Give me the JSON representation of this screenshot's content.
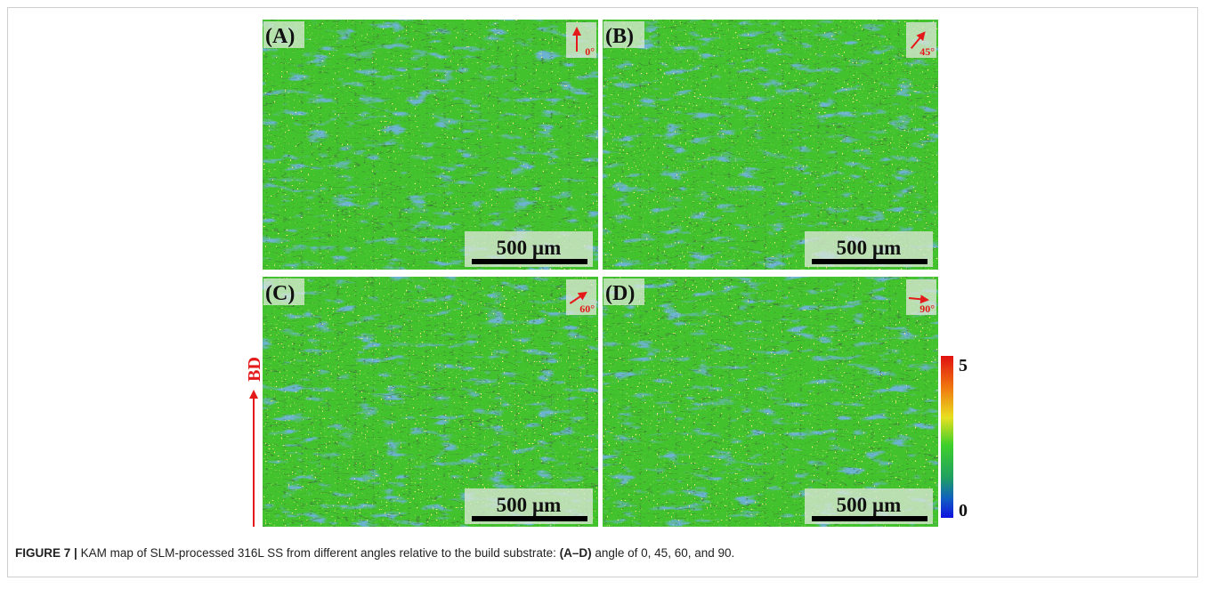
{
  "figure": {
    "panels": [
      {
        "label": "(A)",
        "angle": "0°",
        "scale_bar": "500 µm"
      },
      {
        "label": "(B)",
        "angle": "45°",
        "scale_bar": "500 µm"
      },
      {
        "label": "(C)",
        "angle": "60°",
        "scale_bar": "500 µm"
      },
      {
        "label": "(D)",
        "angle": "90°",
        "scale_bar": "500 µm"
      }
    ],
    "colorbar": {
      "max": 5,
      "min": 0
    },
    "direction_label": "BD",
    "caption": {
      "label": "FIGURE 7 |",
      "text_before": "KAM map of SLM-processed 316L SS from different angles relative to the build substrate:",
      "emphasis": "(A–D)",
      "text_after": "angle of 0, 45, 60, and 90."
    }
  }
}
